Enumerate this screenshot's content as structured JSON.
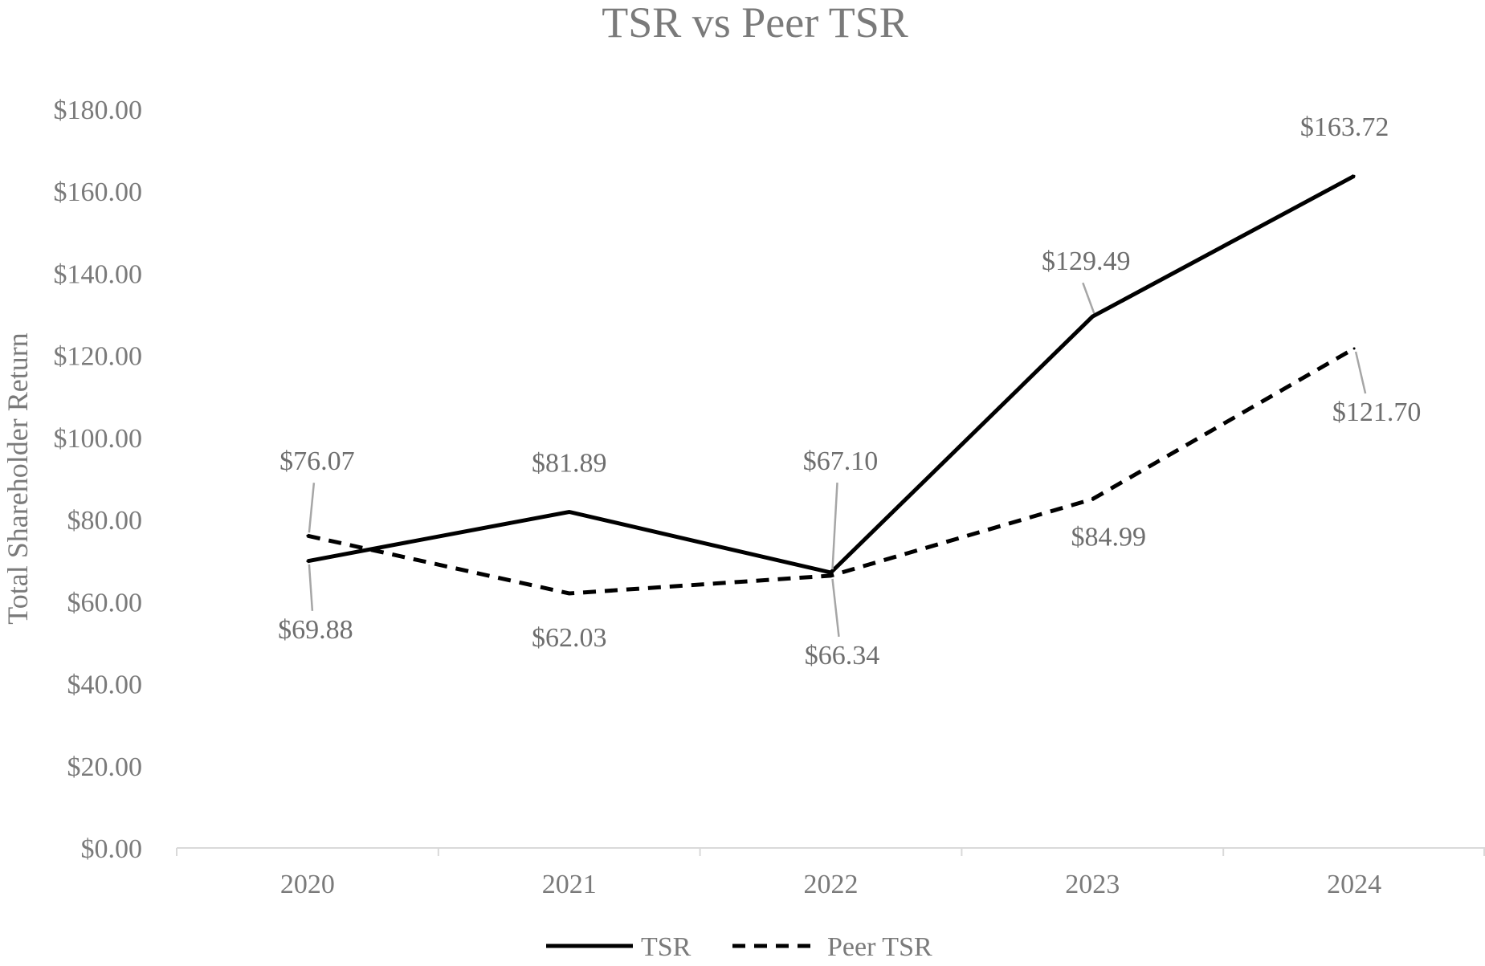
{
  "chart_data": {
    "type": "line",
    "title": "TSR vs Peer TSR",
    "xlabel": "",
    "ylabel": "Total Shareholder Return",
    "categories": [
      "2020",
      "2021",
      "2022",
      "2023",
      "2024"
    ],
    "ylim": [
      0,
      180
    ],
    "yticks": [
      0,
      20,
      40,
      60,
      80,
      100,
      120,
      140,
      160,
      180
    ],
    "ytick_labels": [
      "$0.00",
      "$20.00",
      "$40.00",
      "$60.00",
      "$80.00",
      "$100.00",
      "$120.00",
      "$140.00",
      "$160.00",
      "$180.00"
    ],
    "grid": false,
    "legend_position": "bottom",
    "series": [
      {
        "name": "TSR",
        "style": "solid",
        "color": "#000000",
        "values": [
          69.88,
          81.89,
          67.1,
          129.49,
          163.72
        ],
        "labels": [
          "$69.88",
          "$81.89",
          "$67.10",
          "$129.49",
          "$163.72"
        ]
      },
      {
        "name": "Peer TSR",
        "style": "dashed",
        "color": "#000000",
        "values": [
          76.07,
          62.03,
          66.34,
          84.99,
          121.7
        ],
        "labels": [
          "$76.07",
          "$62.03",
          "$66.34",
          "$84.99",
          "$121.70"
        ]
      }
    ],
    "colors": {
      "text": "#7a7a7a",
      "axis": "#d9d9d9",
      "leader": "#a6a6a6"
    }
  }
}
